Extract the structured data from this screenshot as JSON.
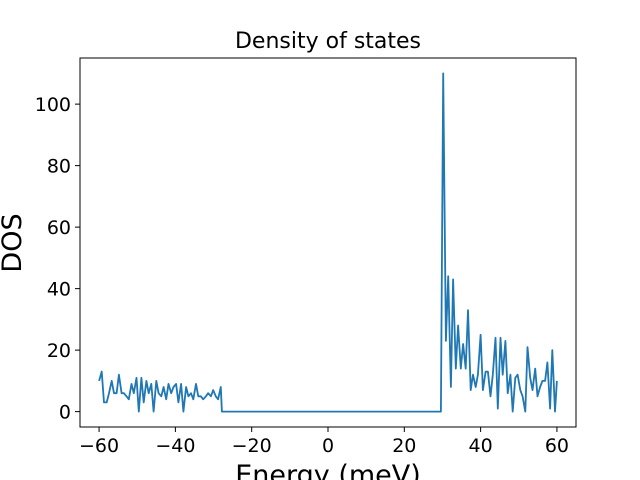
{
  "chart_data": {
    "type": "line",
    "title": "Density of states",
    "xlabel": "Energy (meV)",
    "ylabel": "DOS",
    "xlim": [
      -65,
      65
    ],
    "ylim": [
      -5,
      115
    ],
    "xticks": [
      -60,
      -40,
      -20,
      0,
      20,
      40,
      60
    ],
    "yticks": [
      0,
      20,
      40,
      60,
      80,
      100
    ],
    "grid": false,
    "line_color": "#1f77b4",
    "series": [
      {
        "x": [
          -60,
          -59.3,
          -58.7,
          -58,
          -57.4,
          -56.7,
          -56.1,
          -55.4,
          -54.8,
          -54.1,
          -53.5,
          -52.8,
          -52.2,
          -51.5,
          -50.9,
          -50.2,
          -49.6,
          -48.9,
          -48.3,
          -47.6,
          -47,
          -46.3,
          -45.7,
          -45,
          -44.4,
          -43.7,
          -43.1,
          -42.4,
          -41.8,
          -41.1,
          -40.5,
          -39.8,
          -39.2,
          -38.5,
          -37.9,
          -37.2,
          -36.6,
          -35.9,
          -35.3,
          -34.6,
          -34,
          -33.3,
          -32.7,
          -32,
          -31.4,
          -30.7,
          -30.1,
          -29.4,
          -28.8,
          -28.1,
          -27.8,
          0,
          29.6,
          30.2,
          30.9,
          31.5,
          32.2,
          32.8,
          33.5,
          34.1,
          34.8,
          35.4,
          36.1,
          36.7,
          37.4,
          38,
          38.7,
          39.3,
          40,
          40.6,
          41.3,
          41.9,
          42.6,
          43.2,
          43.9,
          44.5,
          45.2,
          45.8,
          46.5,
          47.1,
          47.8,
          48.4,
          49.1,
          49.7,
          50.4,
          51,
          51.7,
          52.3,
          53,
          53.6,
          54.3,
          54.9,
          55.6,
          56.2,
          56.9,
          57.5,
          58.2,
          58.8,
          59.5,
          60
        ],
        "y": [
          10,
          13,
          3,
          3,
          6,
          10,
          6,
          6,
          12,
          6,
          6,
          5,
          4,
          9,
          6,
          11,
          0,
          11,
          3,
          10,
          6,
          9,
          0,
          10,
          6,
          5,
          8,
          4,
          9,
          6,
          8,
          9,
          3,
          9,
          0,
          8,
          5,
          6,
          4,
          9,
          5,
          5,
          4,
          5,
          6,
          5,
          7,
          5,
          4,
          8,
          0,
          0,
          0,
          110,
          23,
          44,
          8,
          43,
          14,
          28,
          14,
          22,
          14,
          33,
          7,
          12,
          8,
          12,
          25,
          7,
          13,
          13,
          5,
          12,
          24,
          1,
          24,
          12,
          23,
          6,
          12,
          0,
          11,
          12,
          7,
          5,
          0,
          21,
          11,
          7,
          14,
          5,
          8,
          10,
          10,
          16,
          1,
          20,
          0,
          10
        ]
      }
    ]
  }
}
